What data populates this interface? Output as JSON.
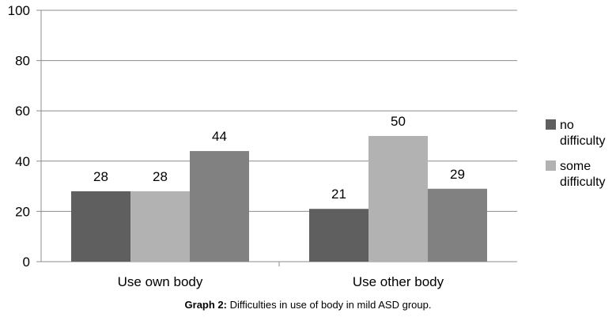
{
  "chart_data": {
    "type": "bar",
    "categories": [
      "Use own body",
      "Use other body"
    ],
    "series": [
      {
        "name": "no difficulty",
        "legend_lines": [
          "no",
          "difficulty"
        ],
        "values": [
          28,
          21
        ],
        "color": "#5f5f5f"
      },
      {
        "name": "some difficulty",
        "legend_lines": [
          "some",
          "difficulty"
        ],
        "values": [
          28,
          50
        ],
        "color": "#b2b2b2"
      },
      {
        "name": "",
        "values": [
          44,
          29
        ],
        "color": "#818181"
      }
    ],
    "ylim": [
      0,
      100
    ],
    "yticks": [
      0,
      20,
      40,
      60,
      80,
      100
    ],
    "grid": true,
    "legend_position": "right",
    "xlabel": "",
    "ylabel": ""
  },
  "caption": {
    "label": "Graph 2:",
    "text": " Difficulties in use of body in mild ASD group."
  }
}
